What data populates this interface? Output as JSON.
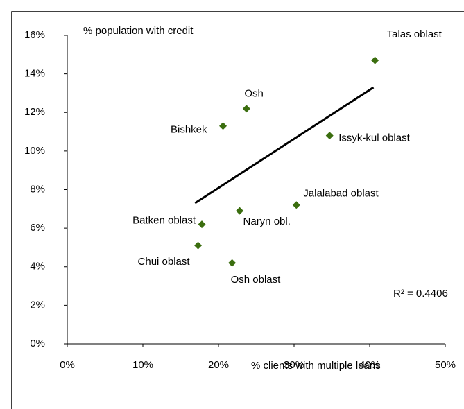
{
  "chart_data": {
    "type": "scatter",
    "y_label": "% population with credit",
    "x_label": "% clients with multiple loans",
    "annotation": "R² = 0.4406",
    "labels": [
      "Talas oblast",
      "Osh",
      "Bishkek",
      "Issyk-kul oblast",
      "Jalalabad oblast",
      "Naryn obl.",
      "Batken oblast",
      "Chui oblast",
      "Osh oblast"
    ],
    "x": [
      40.7,
      23.7,
      20.6,
      34.7,
      30.3,
      22.8,
      17.8,
      17.3,
      21.8
    ],
    "y": [
      14.7,
      12.2,
      11.3,
      10.8,
      7.2,
      6.9,
      6.2,
      5.1,
      4.2
    ],
    "color": "#3b6e0f",
    "trendline": {
      "x": [
        16.9,
        40.5
      ],
      "y": [
        7.3,
        13.3
      ]
    },
    "xlim": [
      0,
      50
    ],
    "xticks": [
      {
        "value": 0,
        "label": "0%"
      },
      {
        "value": 10,
        "label": "10%"
      },
      {
        "value": 20,
        "label": "20%"
      },
      {
        "value": 30,
        "label": "30%"
      },
      {
        "value": 40,
        "label": "40%"
      },
      {
        "value": 50,
        "label": "50%"
      }
    ],
    "ylim": [
      0,
      16
    ],
    "yticks": [
      {
        "value": 0,
        "label": "0%"
      },
      {
        "value": 2,
        "label": "2%"
      },
      {
        "value": 4,
        "label": "4%"
      },
      {
        "value": 6,
        "label": "6%"
      },
      {
        "value": 8,
        "label": "8%"
      },
      {
        "value": 10,
        "label": "10%"
      },
      {
        "value": 12,
        "label": "12%"
      },
      {
        "value": 14,
        "label": "14%"
      },
      {
        "value": 16,
        "label": "16%"
      }
    ]
  }
}
